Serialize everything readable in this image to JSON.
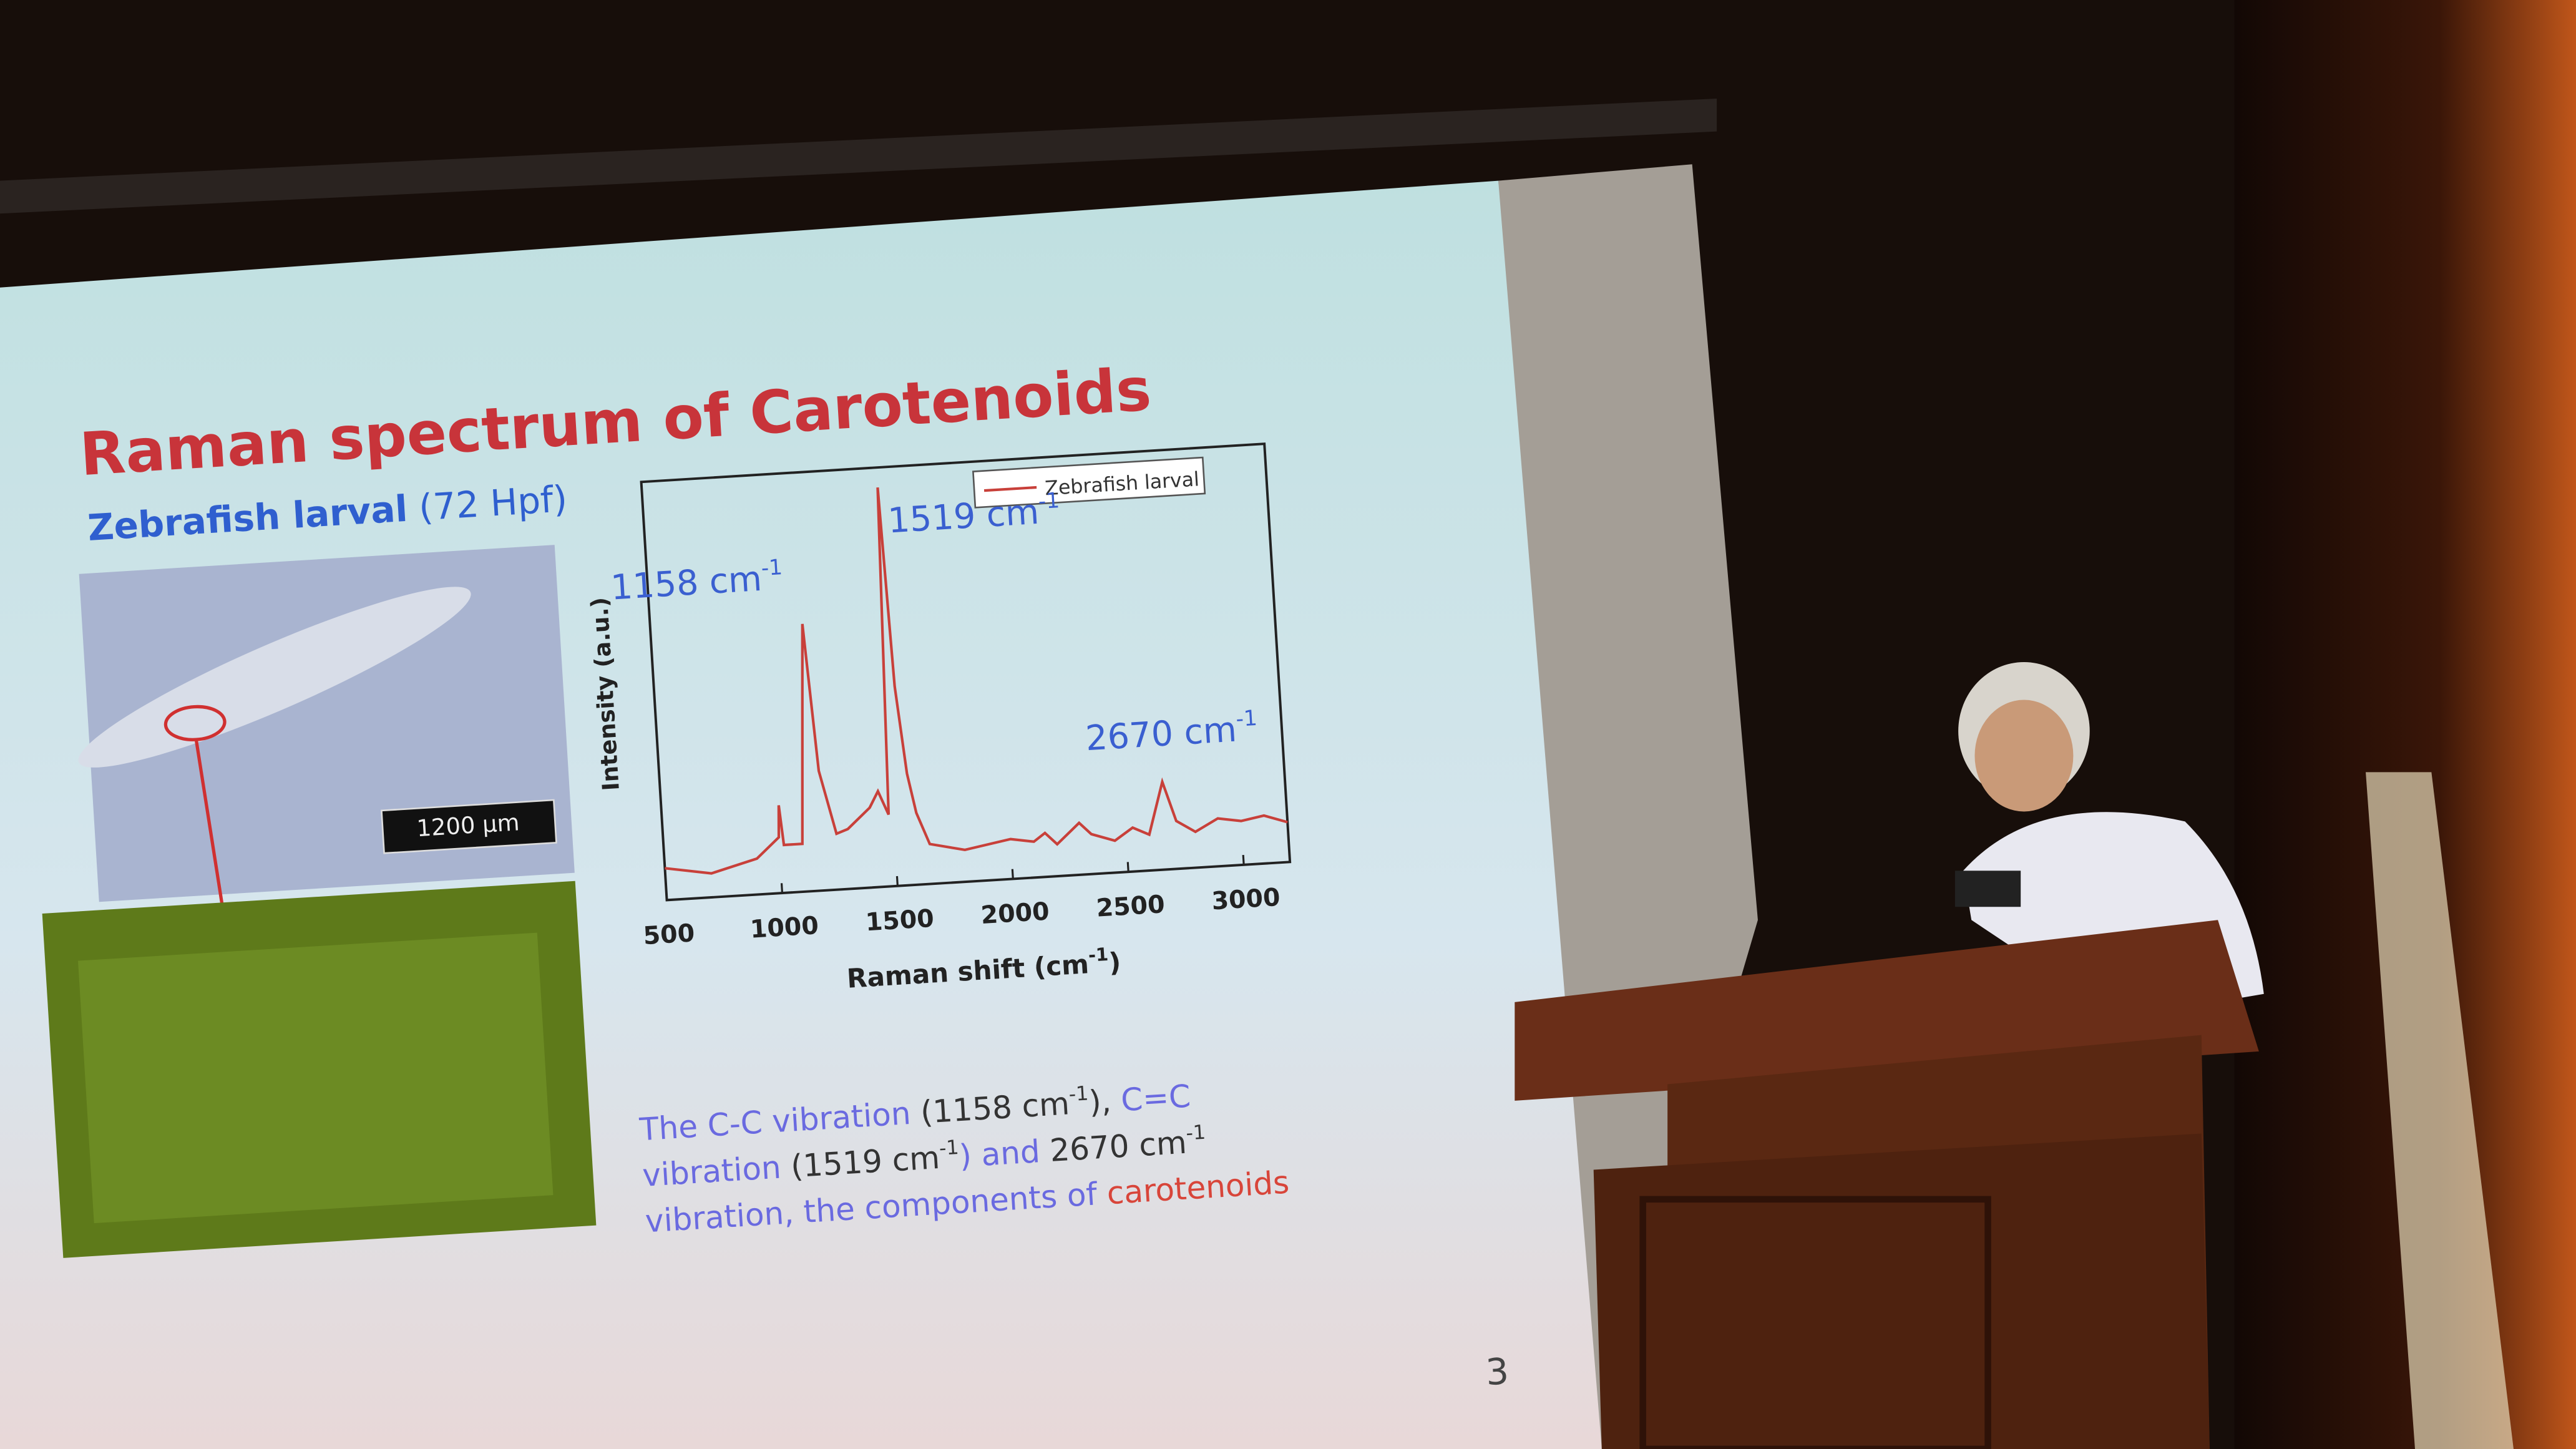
{
  "slide": {
    "title": "Raman spectrum of Carotenoids",
    "subtitle_bold": "Zebrafish larval",
    "subtitle_rest": "(72 Hpf)",
    "scale_bar": "1200 µm",
    "page_number": "3",
    "caption": [
      [
        "The C-C vibration",
        "(1158 cm",
        "-1",
        "),",
        "C=C"
      ],
      [
        "vibration",
        "(1519 cm",
        "-1",
        ") and",
        "2670 cm",
        "-1"
      ],
      [
        "vibration, the components of",
        "carotenoids"
      ]
    ]
  },
  "chart_data": {
    "type": "line",
    "x_label": [
      "Raman shift (cm",
      "-1",
      ")"
    ],
    "y_label": "Intensity (a.u.)",
    "annotations": [
      {
        "text": "1158 cm",
        "sup": "-1",
        "x": 1158
      },
      {
        "text": "1519 cm",
        "sup": "-1",
        "x": 1519
      },
      {
        "text": "2670 cm",
        "sup": "-1",
        "x": 2670
      }
    ],
    "x": [
      500,
      700,
      900,
      1000,
      1008,
      1020,
      1100,
      1158,
      1190,
      1250,
      1300,
      1400,
      1440,
      1480,
      1519,
      1540,
      1570,
      1600,
      1650,
      1800,
      2000,
      2100,
      2150,
      2200,
      2300,
      2350,
      2400,
      2450,
      2530,
      2600,
      2670,
      2720,
      2800,
      2900,
      3000,
      3100,
      3200
    ],
    "series": [
      {
        "name": "Zebrafish larval",
        "color": "#c8403a",
        "values": [
          8,
          6,
          9,
          14,
          22,
          12,
          12,
          67,
          30,
          14,
          15,
          20,
          24,
          18,
          100,
          50,
          28,
          18,
          10,
          8,
          10,
          9,
          11,
          8,
          13,
          10,
          9,
          8,
          11,
          9,
          22,
          12,
          9,
          12,
          11,
          12,
          10
        ]
      }
    ],
    "xlim": [
      500,
      3200
    ],
    "xticks": [
      500,
      1000,
      1500,
      2000,
      2500,
      3000
    ],
    "ylim": [
      0,
      105
    ]
  }
}
